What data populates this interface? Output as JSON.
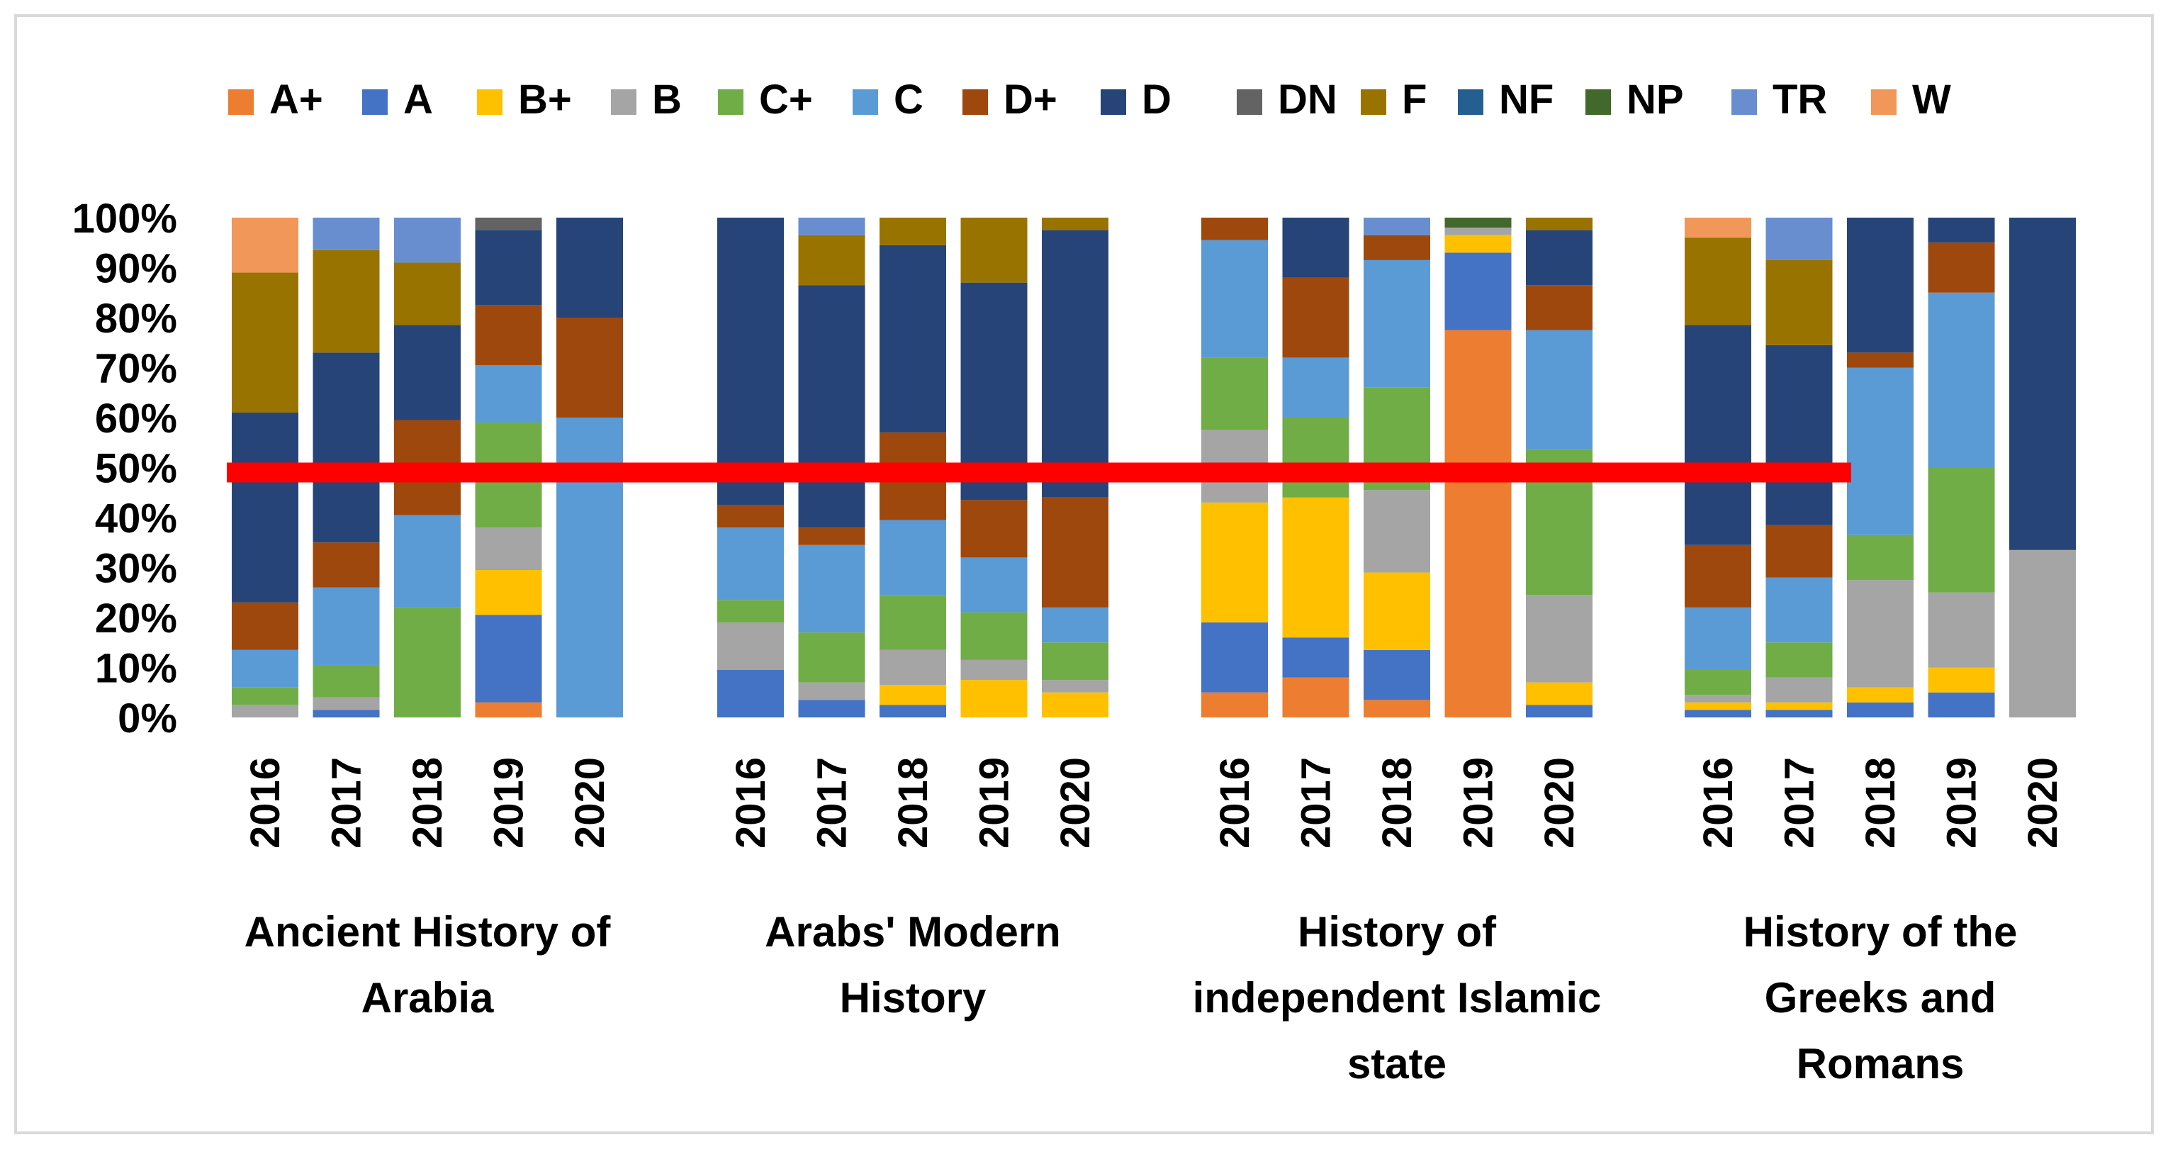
{
  "chart_data": {
    "type": "bar",
    "stacked": true,
    "percent": true,
    "title": "",
    "xlabel": "",
    "ylabel": "",
    "ylim": [
      0,
      100
    ],
    "yticks": [
      "0%",
      "10%",
      "20%",
      "30%",
      "40%",
      "50%",
      "60%",
      "70%",
      "80%",
      "90%",
      "100%"
    ],
    "legend_position": "top",
    "grades": [
      "A+",
      "A",
      "B+",
      "B",
      "C+",
      "C",
      "D+",
      "D",
      "DN",
      "F",
      "NF",
      "NP",
      "TR",
      "W"
    ],
    "colors": {
      "A+": "#ED7D31",
      "A": "#4472C4",
      "B+": "#FFC000",
      "B": "#A5A5A5",
      "C+": "#70AD47",
      "C": "#5B9BD5",
      "D+": "#9E480E",
      "D": "#264478",
      "DN": "#636363",
      "F": "#997300",
      "NF": "#255E91",
      "NP": "#43682B",
      "TR": "#698ED0",
      "W": "#F1975A"
    },
    "reference_line": {
      "value": 49,
      "color": "#FF0000"
    },
    "groups": [
      {
        "label_lines": [
          "Ancient History of",
          "Arabia"
        ],
        "bars": [
          {
            "year": "2016",
            "segments": [
              [
                "B",
                2.5
              ],
              [
                "C+",
                3.5
              ],
              [
                "C",
                7.5
              ],
              [
                "D+",
                9.5
              ],
              [
                "D",
                38
              ],
              [
                "F",
                28
              ],
              [
                "W",
                11
              ]
            ]
          },
          {
            "year": "2017",
            "segments": [
              [
                "A",
                1.5
              ],
              [
                "B",
                2.5
              ],
              [
                "C+",
                6.5
              ],
              [
                "C",
                15.5
              ],
              [
                "D+",
                9
              ],
              [
                "D",
                38
              ],
              [
                "F",
                20.5
              ],
              [
                "TR",
                6.5
              ]
            ]
          },
          {
            "year": "2018",
            "segments": [
              [
                "C+",
                22
              ],
              [
                "C",
                18.5
              ],
              [
                "D+",
                19
              ],
              [
                "D",
                19
              ],
              [
                "F",
                12.5
              ],
              [
                "TR",
                9
              ]
            ]
          },
          {
            "year": "2019",
            "segments": [
              [
                "A+",
                3
              ],
              [
                "A",
                17.5
              ],
              [
                "B+",
                9
              ],
              [
                "B",
                8.5
              ],
              [
                "C+",
                21
              ],
              [
                "C",
                11.5
              ],
              [
                "D+",
                12
              ],
              [
                "D",
                15
              ],
              [
                "DN",
                2.5
              ]
            ]
          },
          {
            "year": "2020",
            "segments": [
              [
                "C",
                60
              ],
              [
                "D+",
                20
              ],
              [
                "D",
                20
              ]
            ]
          }
        ]
      },
      {
        "label_lines": [
          "Arabs' Modern",
          "History"
        ],
        "bars": [
          {
            "year": "2016",
            "segments": [
              [
                "A",
                9.5
              ],
              [
                "B",
                9.5
              ],
              [
                "C+",
                4.5
              ],
              [
                "C",
                14.5
              ],
              [
                "D+",
                4.5
              ],
              [
                "D",
                57.5
              ]
            ]
          },
          {
            "year": "2017",
            "segments": [
              [
                "A",
                3.5
              ],
              [
                "B",
                3.5
              ],
              [
                "C+",
                10
              ],
              [
                "C",
                17.5
              ],
              [
                "D+",
                3.5
              ],
              [
                "D",
                48.5
              ],
              [
                "F",
                10
              ],
              [
                "TR",
                3.5
              ]
            ]
          },
          {
            "year": "2018",
            "segments": [
              [
                "A",
                2.5
              ],
              [
                "B+",
                4
              ],
              [
                "B",
                7
              ],
              [
                "C+",
                11
              ],
              [
                "C",
                15
              ],
              [
                "D+",
                17.5
              ],
              [
                "D",
                37.5
              ],
              [
                "F",
                5.5
              ]
            ]
          },
          {
            "year": "2019",
            "segments": [
              [
                "B+",
                7.5
              ],
              [
                "B",
                4
              ],
              [
                "C+",
                9.5
              ],
              [
                "C",
                11
              ],
              [
                "D+",
                11.5
              ],
              [
                "D",
                43.5
              ],
              [
                "F",
                13
              ]
            ]
          },
          {
            "year": "2020",
            "segments": [
              [
                "B+",
                5
              ],
              [
                "B",
                2.5
              ],
              [
                "C+",
                7.5
              ],
              [
                "C",
                7
              ],
              [
                "D+",
                22
              ],
              [
                "D",
                53.5
              ],
              [
                "F",
                2.5
              ]
            ]
          }
        ]
      },
      {
        "label_lines": [
          "History of",
          "independent Islamic",
          "state"
        ],
        "bars": [
          {
            "year": "2016",
            "segments": [
              [
                "A+",
                5
              ],
              [
                "A",
                14
              ],
              [
                "B+",
                24
              ],
              [
                "B",
                14.5
              ],
              [
                "C+",
                14.5
              ],
              [
                "C",
                23.5
              ],
              [
                "D+",
                4.5
              ]
            ]
          },
          {
            "year": "2017",
            "segments": [
              [
                "A+",
                8
              ],
              [
                "A",
                8
              ],
              [
                "B+",
                28
              ],
              [
                "C+",
                16
              ],
              [
                "C",
                12
              ],
              [
                "D+",
                16
              ],
              [
                "D",
                12
              ]
            ]
          },
          {
            "year": "2018",
            "segments": [
              [
                "A+",
                3.5
              ],
              [
                "A",
                10
              ],
              [
                "B+",
                15.5
              ],
              [
                "B",
                16.5
              ],
              [
                "C+",
                20.5
              ],
              [
                "C",
                25.5
              ],
              [
                "D+",
                5
              ],
              [
                "TR",
                3.5
              ]
            ]
          },
          {
            "year": "2019",
            "segments": [
              [
                "A+",
                77.5
              ],
              [
                "A",
                15.5
              ],
              [
                "B+",
                3.5
              ],
              [
                "B",
                1.5
              ],
              [
                "NP",
                2
              ]
            ]
          },
          {
            "year": "2020",
            "segments": [
              [
                "A",
                2.5
              ],
              [
                "B+",
                4.5
              ],
              [
                "B",
                17.5
              ],
              [
                "C+",
                29
              ],
              [
                "C",
                24
              ],
              [
                "D+",
                9
              ],
              [
                "D",
                11
              ],
              [
                "F",
                2.5
              ]
            ]
          }
        ]
      },
      {
        "label_lines": [
          "History of the",
          "Greeks and",
          "Romans"
        ],
        "bars": [
          {
            "year": "2016",
            "segments": [
              [
                "A",
                1.5
              ],
              [
                "B+",
                1.5
              ],
              [
                "B",
                1.5
              ],
              [
                "C+",
                5
              ],
              [
                "C",
                12.5
              ],
              [
                "D+",
                12.5
              ],
              [
                "D",
                44
              ],
              [
                "F",
                17.5
              ],
              [
                "W",
                4
              ]
            ]
          },
          {
            "year": "2017",
            "segments": [
              [
                "A",
                1.5
              ],
              [
                "B+",
                1.5
              ],
              [
                "B",
                5
              ],
              [
                "C+",
                7
              ],
              [
                "C",
                13
              ],
              [
                "D+",
                10.5
              ],
              [
                "D",
                36
              ],
              [
                "F",
                17
              ],
              [
                "TR",
                8.5
              ]
            ]
          },
          {
            "year": "2018",
            "segments": [
              [
                "A",
                3
              ],
              [
                "B+",
                3
              ],
              [
                "B",
                21.5
              ],
              [
                "C+",
                9
              ],
              [
                "C",
                33.5
              ],
              [
                "D+",
                3
              ],
              [
                "D",
                27
              ]
            ]
          },
          {
            "year": "2019",
            "segments": [
              [
                "A",
                5
              ],
              [
                "B+",
                5
              ],
              [
                "B",
                15
              ],
              [
                "C+",
                25
              ],
              [
                "C",
                35
              ],
              [
                "D+",
                10
              ],
              [
                "D",
                5
              ]
            ]
          },
          {
            "year": "2020",
            "segments": [
              [
                "B",
                33.5
              ],
              [
                "D",
                66.5
              ]
            ]
          }
        ]
      }
    ]
  }
}
